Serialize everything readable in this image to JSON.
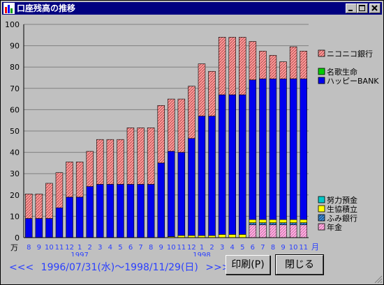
{
  "window": {
    "title": "口座残高の推移"
  },
  "buttons": {
    "print": "印刷(P)",
    "close": "閉じる"
  },
  "nav": {
    "prev": "<<<",
    "range": "1996/07/31(水)〜1998/11/29(日)",
    "next": ">>>"
  },
  "chart_data": {
    "type": "bar",
    "stacked": true,
    "ylim": [
      0,
      100
    ],
    "y_ticks": [
      "0",
      "10",
      "20",
      "30",
      "40",
      "50",
      "60",
      "70",
      "80",
      "90",
      "100"
    ],
    "y_unit": "万",
    "x_unit": "月",
    "categories": [
      "8",
      "9",
      "10",
      "11",
      "12",
      "1",
      "2",
      "3",
      "4",
      "5",
      "6",
      "7",
      "8",
      "9",
      "10",
      "11",
      "12",
      "1",
      "2",
      "3",
      "4",
      "5",
      "6",
      "7",
      "8",
      "9",
      "10",
      "11"
    ],
    "year_labels": [
      {
        "text": "1997",
        "index": 5
      },
      {
        "text": "1998",
        "index": 17
      }
    ],
    "grid": true,
    "series": [
      {
        "name": "年金",
        "color": "#ff99cc",
        "pattern": "hatch",
        "values": [
          0,
          0,
          0,
          0,
          0,
          0,
          0,
          0,
          0,
          0,
          0,
          0,
          0,
          0,
          0,
          0,
          0,
          0,
          0,
          0,
          0,
          0,
          6,
          6,
          6,
          6,
          6,
          6
        ]
      },
      {
        "name": "ふみ銀行",
        "color": "#2f7fbf",
        "pattern": "hatch",
        "values": [
          0,
          0,
          0,
          0,
          0,
          0,
          0,
          0,
          0,
          0,
          0,
          0,
          0,
          0,
          0,
          0,
          0,
          0,
          0,
          0,
          0,
          0,
          1,
          1,
          1,
          1,
          1,
          1
        ]
      },
      {
        "name": "生協積立",
        "color": "#ffff00",
        "pattern": "solid",
        "values": [
          0,
          0,
          0,
          0,
          0,
          0,
          0,
          0,
          0,
          0,
          0,
          0,
          0,
          0,
          0.5,
          1,
          1,
          1,
          1,
          1.5,
          1.5,
          1.5,
          1.5,
          1.5,
          1.5,
          1.5,
          1.5,
          1.5
        ]
      },
      {
        "name": "努力預金",
        "color": "#00c8c8",
        "pattern": "solid",
        "values": [
          0,
          0,
          0,
          0,
          0,
          0,
          0,
          0,
          0,
          0,
          0,
          0,
          0,
          0,
          0,
          0,
          0,
          0,
          0,
          0,
          0,
          0,
          0,
          0,
          0,
          0,
          0,
          0
        ]
      },
      {
        "name": "ハッピーBANK",
        "color": "#0000ee",
        "pattern": "solid",
        "values": [
          9,
          9,
          9,
          14,
          19,
          19,
          24,
          25,
          25,
          25,
          25,
          25,
          25,
          35,
          40,
          39,
          45.5,
          56,
          56,
          65.5,
          65.5,
          65.5,
          65.5,
          66,
          66,
          66,
          66,
          66
        ]
      },
      {
        "name": "名歌生命",
        "color": "#00cc00",
        "pattern": "solid",
        "values": [
          0,
          0,
          0,
          0,
          0,
          0,
          0,
          0,
          0,
          0,
          0,
          0,
          0,
          0,
          0,
          0,
          0,
          0,
          0,
          0,
          0,
          0,
          0,
          0,
          0,
          0,
          0,
          0
        ]
      },
      {
        "name": "ニコニコ銀行",
        "color": "#ff8080",
        "pattern": "hatch",
        "values": [
          11.5,
          11.5,
          16.5,
          16.5,
          16.5,
          16.5,
          16.5,
          21,
          21,
          21,
          26.5,
          26.5,
          26.5,
          27,
          24.5,
          25,
          24.5,
          24.5,
          21,
          27,
          27,
          27,
          18,
          13,
          11,
          8,
          15,
          13
        ]
      }
    ],
    "legend_top": [
      "ニコニコ銀行",
      "名歌生命",
      "ハッピーBANK"
    ],
    "legend_bottom": [
      "努力預金",
      "生協積立",
      "ふみ銀行",
      "年金"
    ]
  }
}
